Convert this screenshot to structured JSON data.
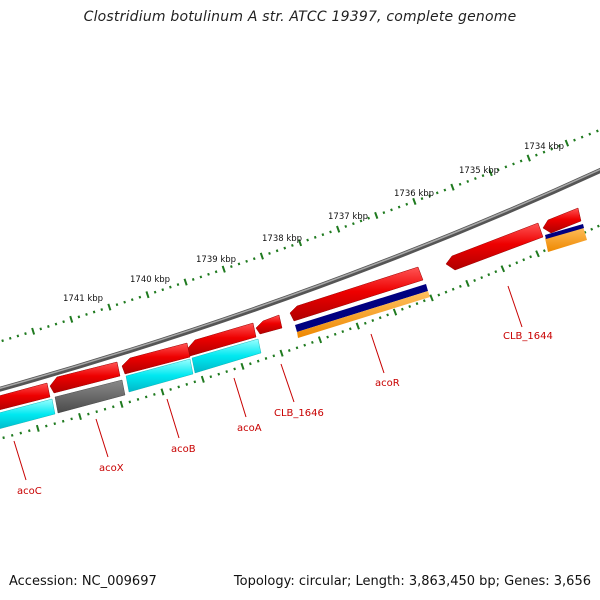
{
  "header": {
    "title": "Clostridium botulinum A str. ATCC 19397, complete genome"
  },
  "footer": {
    "accession": "Accession: NC_009697",
    "topology": "Topology: circular; Length: 3,863,450 bp; Genes: 3,656"
  },
  "ruler": {
    "labels": [
      "1734 kbp",
      "1735 kbp",
      "1736 kbp",
      "1737 kbp",
      "1738 kbp",
      "1739 kbp",
      "1740 kbp",
      "1741 kbp"
    ]
  },
  "genes": [
    {
      "name": "CLB_1644"
    },
    {
      "name": "acoR"
    },
    {
      "name": "CLB_1646"
    },
    {
      "name": "acoA"
    },
    {
      "name": "acoB"
    },
    {
      "name": "acoX"
    },
    {
      "name": "acoC"
    }
  ],
  "colors": {
    "gene_red": "#ee1111",
    "cyan": "#00e5ee",
    "dark_blue": "#000080",
    "orange": "#ff9900",
    "gray_feature": "#555555",
    "backbone": "#777777",
    "ruler_green": "#1f7a1f",
    "label_red": "#c80000"
  }
}
